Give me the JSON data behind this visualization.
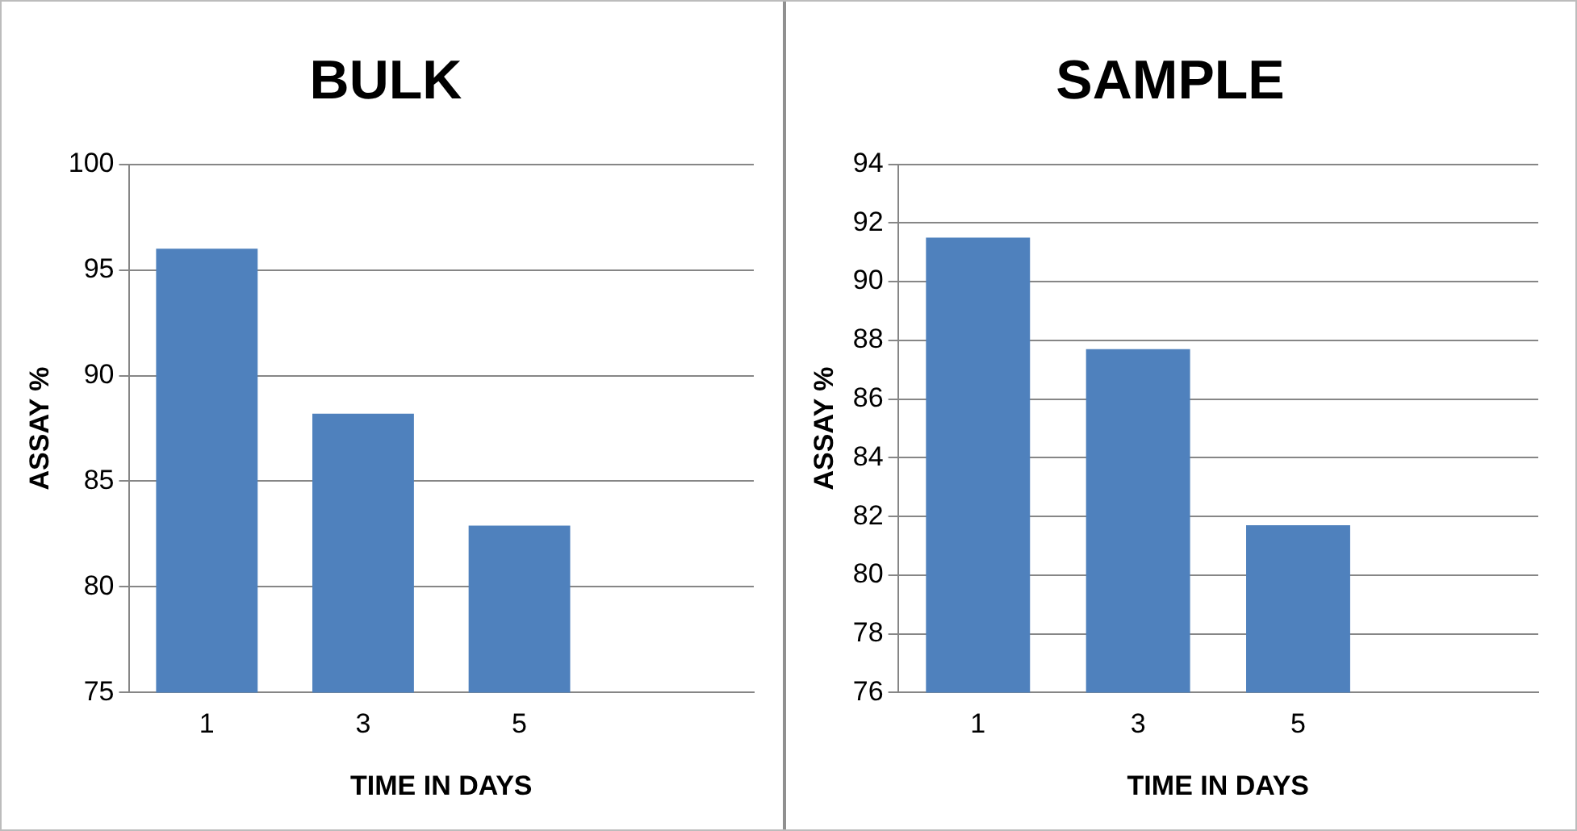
{
  "chart_data": [
    {
      "type": "bar",
      "title": "BULK",
      "xlabel": "TIME IN DAYS",
      "ylabel": "ASSAY %",
      "categories": [
        "1",
        "3",
        "5",
        null
      ],
      "values": [
        96,
        88.2,
        82.9,
        null
      ],
      "color": "#4f81bd",
      "ylim": [
        75,
        100
      ],
      "yticks": [
        75,
        80,
        85,
        90,
        95,
        100
      ],
      "grid": "y",
      "legend": false
    },
    {
      "type": "bar",
      "title": "SAMPLE",
      "xlabel": "TIME IN DAYS",
      "ylabel": "ASSAY %",
      "categories": [
        "1",
        "3",
        "5",
        null
      ],
      "values": [
        91.5,
        87.7,
        81.7,
        null
      ],
      "color": "#4f81bd",
      "ylim": [
        76,
        94
      ],
      "yticks": [
        76,
        78,
        80,
        82,
        84,
        86,
        88,
        90,
        92,
        94
      ],
      "grid": "y",
      "legend": false
    }
  ]
}
